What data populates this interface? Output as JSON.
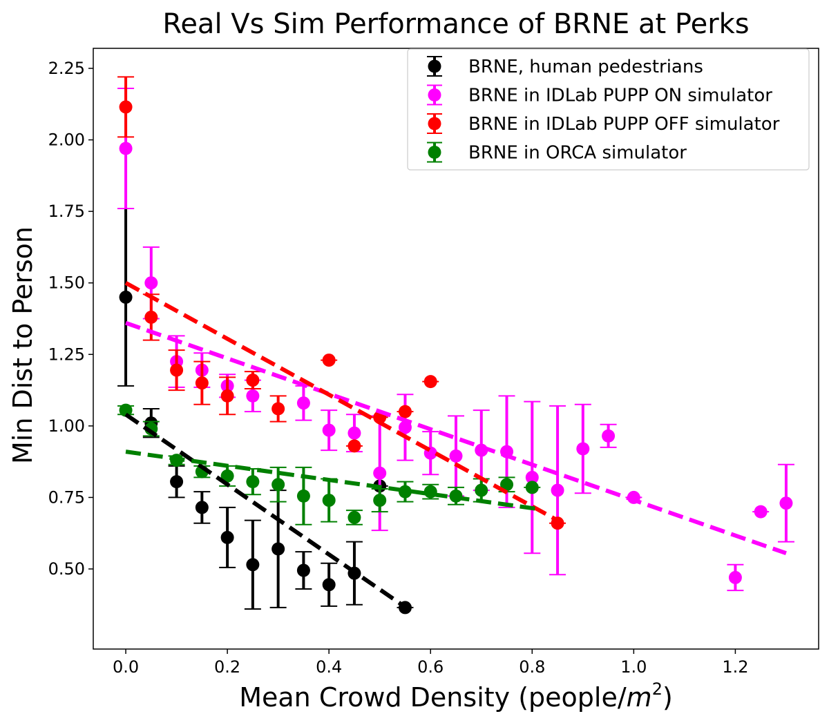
{
  "chart_data": {
    "type": "scatter",
    "title": "Real Vs Sim Performance of BRNE at Perks",
    "xlabel": "Mean Crowd Density (people/",
    "xlabel_unit": "m",
    "xlabel_exp": "2",
    "xlabel_close": ")",
    "ylabel": "Min Dist to Person",
    "xlim": [
      -0.064,
      1.364
    ],
    "ylim": [
      0.22,
      2.32
    ],
    "x_ticks": [
      0.0,
      0.2,
      0.4,
      0.6,
      0.8,
      1.0,
      1.2
    ],
    "x_tick_labels": [
      "0.0",
      "0.2",
      "0.4",
      "0.6",
      "0.8",
      "1.0",
      "1.2"
    ],
    "y_ticks": [
      0.5,
      0.75,
      1.0,
      1.25,
      1.5,
      1.75,
      2.0,
      2.25
    ],
    "y_tick_labels": [
      "0.50",
      "0.75",
      "1.00",
      "1.25",
      "1.50",
      "1.75",
      "2.00",
      "2.25"
    ],
    "legend_position": "top-right",
    "series": [
      {
        "name": "BRNE, human pedestrians",
        "color": "#000000",
        "points": [
          {
            "x": 0.0,
            "y": 1.45,
            "err": 0.31
          },
          {
            "x": 0.05,
            "y": 1.01,
            "err": 0.05
          },
          {
            "x": 0.1,
            "y": 0.805,
            "err": 0.055
          },
          {
            "x": 0.15,
            "y": 0.715,
            "err": 0.055
          },
          {
            "x": 0.2,
            "y": 0.61,
            "err": 0.105
          },
          {
            "x": 0.25,
            "y": 0.515,
            "err": 0.155
          },
          {
            "x": 0.3,
            "y": 0.57,
            "err": 0.205
          },
          {
            "x": 0.35,
            "y": 0.495,
            "err": 0.065
          },
          {
            "x": 0.4,
            "y": 0.445,
            "err": 0.075
          },
          {
            "x": 0.45,
            "y": 0.485,
            "err": 0.11
          },
          {
            "x": 0.5,
            "y": 0.79,
            "err": 0.0
          },
          {
            "x": 0.55,
            "y": 0.365,
            "err": 0.0
          }
        ],
        "fit": {
          "x": [
            0.0,
            0.56
          ],
          "y": [
            1.04,
            0.355
          ]
        }
      },
      {
        "name": "BRNE in IDLab PUPP ON simulator",
        "color": "#ff00ff",
        "points": [
          {
            "x": 0.0,
            "y": 1.97,
            "err": 0.21
          },
          {
            "x": 0.05,
            "y": 1.5,
            "err": 0.125
          },
          {
            "x": 0.1,
            "y": 1.225,
            "err": 0.09
          },
          {
            "x": 0.15,
            "y": 1.195,
            "err": 0.06
          },
          {
            "x": 0.2,
            "y": 1.14,
            "err": 0.04
          },
          {
            "x": 0.25,
            "y": 1.105,
            "err": 0.055
          },
          {
            "x": 0.35,
            "y": 1.08,
            "err": 0.06
          },
          {
            "x": 0.4,
            "y": 0.985,
            "err": 0.07
          },
          {
            "x": 0.45,
            "y": 0.975,
            "err": 0.065
          },
          {
            "x": 0.5,
            "y": 0.835,
            "err": 0.2
          },
          {
            "x": 0.55,
            "y": 0.995,
            "err": 0.115
          },
          {
            "x": 0.6,
            "y": 0.905,
            "err": 0.075
          },
          {
            "x": 0.65,
            "y": 0.895,
            "err": 0.14
          },
          {
            "x": 0.7,
            "y": 0.915,
            "err": 0.14
          },
          {
            "x": 0.75,
            "y": 0.91,
            "err": 0.195
          },
          {
            "x": 0.8,
            "y": 0.82,
            "err": 0.265
          },
          {
            "x": 0.85,
            "y": 0.775,
            "err": 0.295
          },
          {
            "x": 0.9,
            "y": 0.92,
            "err": 0.155
          },
          {
            "x": 0.95,
            "y": 0.965,
            "err": 0.04
          },
          {
            "x": 1.0,
            "y": 0.75,
            "err": 0.0
          },
          {
            "x": 1.2,
            "y": 0.47,
            "err": 0.045
          },
          {
            "x": 1.25,
            "y": 0.7,
            "err": 0.0
          },
          {
            "x": 1.3,
            "y": 0.73,
            "err": 0.135
          }
        ],
        "fit": {
          "x": [
            0.0,
            1.3
          ],
          "y": [
            1.36,
            0.555
          ]
        }
      },
      {
        "name": "BRNE in IDLab PUPP OFF simulator",
        "color": "#ff0000",
        "points": [
          {
            "x": 0.0,
            "y": 2.115,
            "err": 0.105
          },
          {
            "x": 0.05,
            "y": 1.38,
            "err": 0.08
          },
          {
            "x": 0.1,
            "y": 1.195,
            "err": 0.07
          },
          {
            "x": 0.15,
            "y": 1.15,
            "err": 0.075
          },
          {
            "x": 0.2,
            "y": 1.105,
            "err": 0.065
          },
          {
            "x": 0.25,
            "y": 1.16,
            "err": 0.03
          },
          {
            "x": 0.3,
            "y": 1.06,
            "err": 0.045
          },
          {
            "x": 0.4,
            "y": 1.23,
            "err": 0.0
          },
          {
            "x": 0.45,
            "y": 0.93,
            "err": 0.0
          },
          {
            "x": 0.5,
            "y": 1.03,
            "err": 0.0
          },
          {
            "x": 0.55,
            "y": 1.05,
            "err": 0.0
          },
          {
            "x": 0.6,
            "y": 1.155,
            "err": 0.0
          },
          {
            "x": 0.85,
            "y": 0.66,
            "err": 0.0
          }
        ],
        "fit": {
          "x": [
            0.0,
            0.85
          ],
          "y": [
            1.5,
            0.67
          ]
        }
      },
      {
        "name": "BRNE in ORCA simulator",
        "color": "#008000",
        "points": [
          {
            "x": 0.0,
            "y": 1.055,
            "err": 0.015
          },
          {
            "x": 0.05,
            "y": 0.99,
            "err": 0.025
          },
          {
            "x": 0.1,
            "y": 0.88,
            "err": 0.015
          },
          {
            "x": 0.15,
            "y": 0.84,
            "err": 0.02
          },
          {
            "x": 0.2,
            "y": 0.825,
            "err": 0.035
          },
          {
            "x": 0.25,
            "y": 0.805,
            "err": 0.045
          },
          {
            "x": 0.3,
            "y": 0.795,
            "err": 0.06
          },
          {
            "x": 0.35,
            "y": 0.755,
            "err": 0.1
          },
          {
            "x": 0.4,
            "y": 0.74,
            "err": 0.075
          },
          {
            "x": 0.45,
            "y": 0.68,
            "err": 0.025
          },
          {
            "x": 0.5,
            "y": 0.74,
            "err": 0.04
          },
          {
            "x": 0.55,
            "y": 0.77,
            "err": 0.035
          },
          {
            "x": 0.6,
            "y": 0.77,
            "err": 0.025
          },
          {
            "x": 0.65,
            "y": 0.755,
            "err": 0.03
          },
          {
            "x": 0.7,
            "y": 0.775,
            "err": 0.04
          },
          {
            "x": 0.75,
            "y": 0.795,
            "err": 0.025
          },
          {
            "x": 0.8,
            "y": 0.785,
            "err": 0.0
          }
        ],
        "fit": {
          "x": [
            0.0,
            0.81
          ],
          "y": [
            0.91,
            0.71
          ]
        }
      }
    ]
  }
}
